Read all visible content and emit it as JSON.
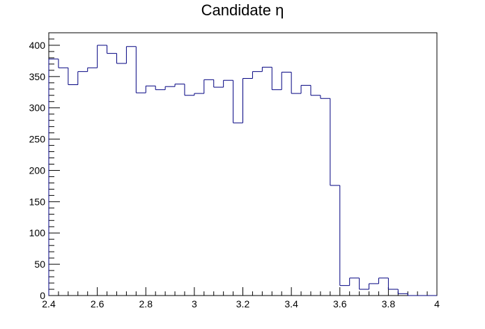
{
  "chart_data": {
    "type": "histogram",
    "title": "Candidate  η",
    "xlabel": "",
    "ylabel": "",
    "xlim": [
      2.4,
      4.0
    ],
    "ylim": [
      0,
      420
    ],
    "grid": false,
    "x_ticks": [
      {
        "value": 2.4,
        "label": "2.4"
      },
      {
        "value": 2.6,
        "label": "2.6"
      },
      {
        "value": 2.8,
        "label": "2.8"
      },
      {
        "value": 3.0,
        "label": "3"
      },
      {
        "value": 3.2,
        "label": "3.2"
      },
      {
        "value": 3.4,
        "label": "3.4"
      },
      {
        "value": 3.6,
        "label": "3.6"
      },
      {
        "value": 3.8,
        "label": "3.8"
      },
      {
        "value": 4.0,
        "label": "4"
      }
    ],
    "y_ticks": [
      {
        "value": 0,
        "label": "0"
      },
      {
        "value": 50,
        "label": "50"
      },
      {
        "value": 100,
        "label": "100"
      },
      {
        "value": 150,
        "label": "150"
      },
      {
        "value": 200,
        "label": "200"
      },
      {
        "value": 250,
        "label": "250"
      },
      {
        "value": 300,
        "label": "300"
      },
      {
        "value": 350,
        "label": "350"
      },
      {
        "value": 400,
        "label": "400"
      }
    ],
    "bin_width": 0.04,
    "line_color": "#000080",
    "bins": [
      {
        "x0": 2.4,
        "value": 378
      },
      {
        "x0": 2.44,
        "value": 364
      },
      {
        "x0": 2.48,
        "value": 337
      },
      {
        "x0": 2.52,
        "value": 358
      },
      {
        "x0": 2.56,
        "value": 364
      },
      {
        "x0": 2.6,
        "value": 400
      },
      {
        "x0": 2.64,
        "value": 387
      },
      {
        "x0": 2.68,
        "value": 371
      },
      {
        "x0": 2.72,
        "value": 398
      },
      {
        "x0": 2.76,
        "value": 324
      },
      {
        "x0": 2.8,
        "value": 335
      },
      {
        "x0": 2.84,
        "value": 329
      },
      {
        "x0": 2.88,
        "value": 334
      },
      {
        "x0": 2.92,
        "value": 338
      },
      {
        "x0": 2.96,
        "value": 320
      },
      {
        "x0": 3.0,
        "value": 323
      },
      {
        "x0": 3.04,
        "value": 345
      },
      {
        "x0": 3.08,
        "value": 333
      },
      {
        "x0": 3.12,
        "value": 344
      },
      {
        "x0": 3.16,
        "value": 276
      },
      {
        "x0": 3.2,
        "value": 347
      },
      {
        "x0": 3.24,
        "value": 358
      },
      {
        "x0": 3.28,
        "value": 365
      },
      {
        "x0": 3.32,
        "value": 329
      },
      {
        "x0": 3.36,
        "value": 357
      },
      {
        "x0": 3.4,
        "value": 323
      },
      {
        "x0": 3.44,
        "value": 336
      },
      {
        "x0": 3.48,
        "value": 320
      },
      {
        "x0": 3.52,
        "value": 315
      },
      {
        "x0": 3.56,
        "value": 176
      },
      {
        "x0": 3.6,
        "value": 16
      },
      {
        "x0": 3.64,
        "value": 28
      },
      {
        "x0": 3.68,
        "value": 10
      },
      {
        "x0": 3.72,
        "value": 19
      },
      {
        "x0": 3.76,
        "value": 28
      },
      {
        "x0": 3.8,
        "value": 10
      },
      {
        "x0": 3.84,
        "value": 3
      },
      {
        "x0": 3.88,
        "value": 0
      },
      {
        "x0": 3.92,
        "value": 0
      },
      {
        "x0": 3.96,
        "value": 0
      }
    ]
  }
}
